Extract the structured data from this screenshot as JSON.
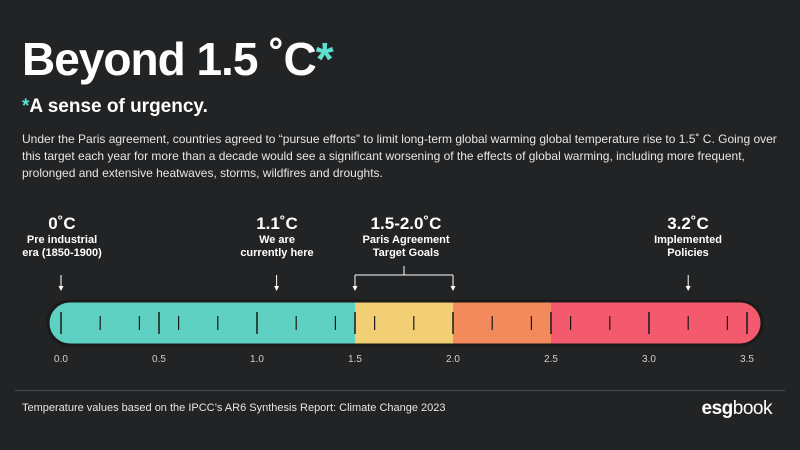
{
  "header": {
    "title": "Beyond 1.5 ˚C",
    "title_star": "*",
    "subtitle_star": "*",
    "subtitle": "A sense of urgency."
  },
  "intro": "Under the Paris agreement, countries agreed to “pursue efforts” to limit long-term global warming global temperature rise to 1.5˚ C. Going over this target each year for more than a decade would see a significant worsening of the effects of global warming, including more frequent, prolonged and extensive heatwaves, storms, wildfires and droughts.",
  "markers": [
    {
      "value": "0˚C",
      "desc1": "Pre industrial",
      "desc2": "era (1850-1900)"
    },
    {
      "value": "1.1˚C",
      "desc1": "We are",
      "desc2": "currently here"
    },
    {
      "value": "1.5-2.0˚C",
      "desc1": "Paris Agreement",
      "desc2": "Target Goals"
    },
    {
      "value": "3.2˚C",
      "desc1": "Implemented",
      "desc2": "Policies"
    }
  ],
  "chart_data": {
    "type": "bar",
    "scale_min": 0.0,
    "scale_max": 3.5,
    "tick_labels": [
      "0.0",
      "0.5",
      "1.0",
      "1.5",
      "2.0",
      "2.5",
      "3.0",
      "3.5"
    ],
    "segments": [
      {
        "from": 0.0,
        "to": 1.5,
        "color": "#5fd1c3"
      },
      {
        "from": 1.5,
        "to": 2.0,
        "color": "#f2cf74"
      },
      {
        "from": 2.0,
        "to": 2.5,
        "color": "#f38a5c"
      },
      {
        "from": 2.5,
        "to": 3.5,
        "color": "#f35a6d"
      }
    ],
    "pointers": [
      0.0,
      1.1,
      1.5,
      2.0,
      3.2
    ]
  },
  "footer": {
    "note": "Temperature values based on the IPCC’s AR6 Synthesis Report: Climate Change 2023",
    "logo_a": "esg",
    "logo_b": "book"
  }
}
